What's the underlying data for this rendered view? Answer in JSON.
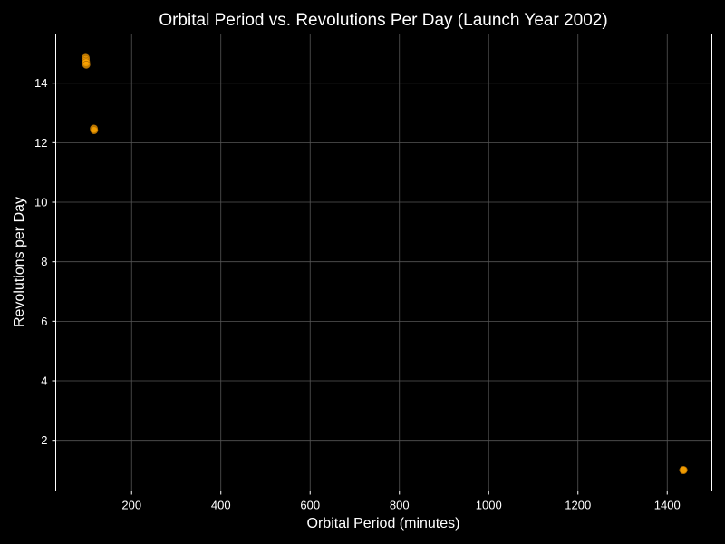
{
  "chart_data": {
    "type": "scatter",
    "title": "Orbital Period vs. Revolutions Per Day (Launch Year 2002)",
    "xlabel": "Orbital Period (minutes)",
    "ylabel": "Revolutions per Day",
    "xlim": [
      30,
      1500
    ],
    "ylim": [
      0.3,
      15.65
    ],
    "xticks": [
      200,
      400,
      600,
      800,
      1000,
      1200,
      1400
    ],
    "yticks": [
      2,
      4,
      6,
      8,
      10,
      12,
      14
    ],
    "grid": true,
    "colors": {
      "background": "#000000",
      "axes": "#ffffff",
      "grid": "#555555",
      "text": "#ffffff",
      "marker": "#ffa500",
      "marker_edge": "#b36f00"
    },
    "series": [
      {
        "points": [
          {
            "x": 97.0,
            "y": 14.85
          },
          {
            "x": 97.3,
            "y": 14.8
          },
          {
            "x": 97.5,
            "y": 14.75
          },
          {
            "x": 98.0,
            "y": 14.7
          },
          {
            "x": 98.5,
            "y": 14.62
          },
          {
            "x": 115.5,
            "y": 12.47
          },
          {
            "x": 116.0,
            "y": 12.42
          },
          {
            "x": 1436.0,
            "y": 1.0
          },
          {
            "x": 1436.5,
            "y": 1.0
          }
        ]
      }
    ]
  }
}
